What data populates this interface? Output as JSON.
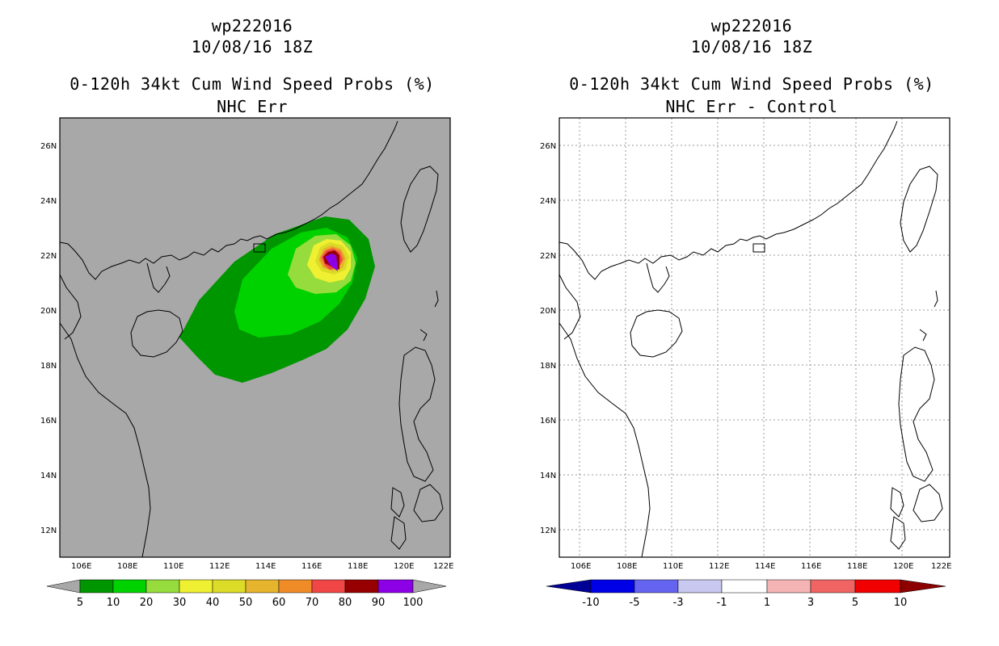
{
  "left_panel": {
    "storm_id": "wp222016",
    "datetime": "10/08/16 18Z",
    "product": "0-120h 34kt Cum Wind Speed Probs (%)",
    "subtitle": "NHC Err",
    "background_color": "#a8a8a8",
    "colorbar": {
      "labels": [
        "5",
        "10",
        "20",
        "30",
        "40",
        "50",
        "60",
        "70",
        "80",
        "90",
        "100"
      ],
      "colors": [
        "#009600",
        "#00d200",
        "#96dc3c",
        "#f0f032",
        "#dcdc28",
        "#e6b42d",
        "#f08c28",
        "#f04646",
        "#960000",
        "#8c00e6"
      ],
      "end_color": "#a8a8a8"
    }
  },
  "right_panel": {
    "storm_id": "wp222016",
    "datetime": "10/08/16 18Z",
    "product": "0-120h 34kt Cum Wind Speed Probs (%)",
    "subtitle": "NHC Err - Control",
    "background_color": "#ffffff",
    "colorbar": {
      "labels": [
        "-10",
        "-5",
        "-3",
        "-1",
        "1",
        "3",
        "5",
        "10"
      ],
      "colors": [
        "#0000e6",
        "#6464f0",
        "#c8c8f0",
        "#ffffff",
        "#f5b4b4",
        "#f06464",
        "#f00000"
      ],
      "low_color": "#000096",
      "high_color": "#8c0000"
    }
  },
  "axes": {
    "lon_labels": [
      "106E",
      "108E",
      "110E",
      "112E",
      "114E",
      "116E",
      "118E",
      "120E",
      "122E"
    ],
    "lat_labels": [
      "26N",
      "24N",
      "22N",
      "20N",
      "18N",
      "16N",
      "14N",
      "12N"
    ]
  }
}
